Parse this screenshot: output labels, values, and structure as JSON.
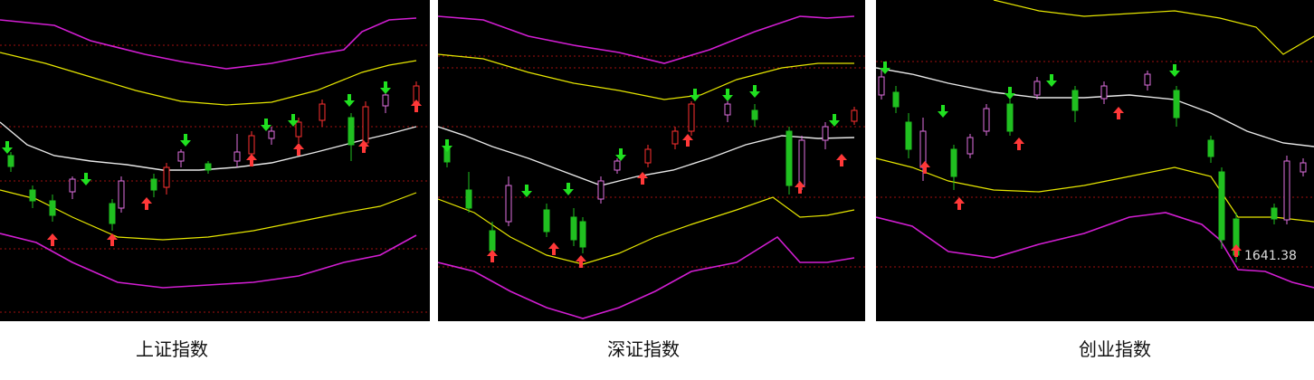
{
  "panels": [
    {
      "label": "上证指数"
    },
    {
      "label": "深证指数"
    },
    {
      "label": "创业指数",
      "price_label": "1641.38"
    }
  ]
}
